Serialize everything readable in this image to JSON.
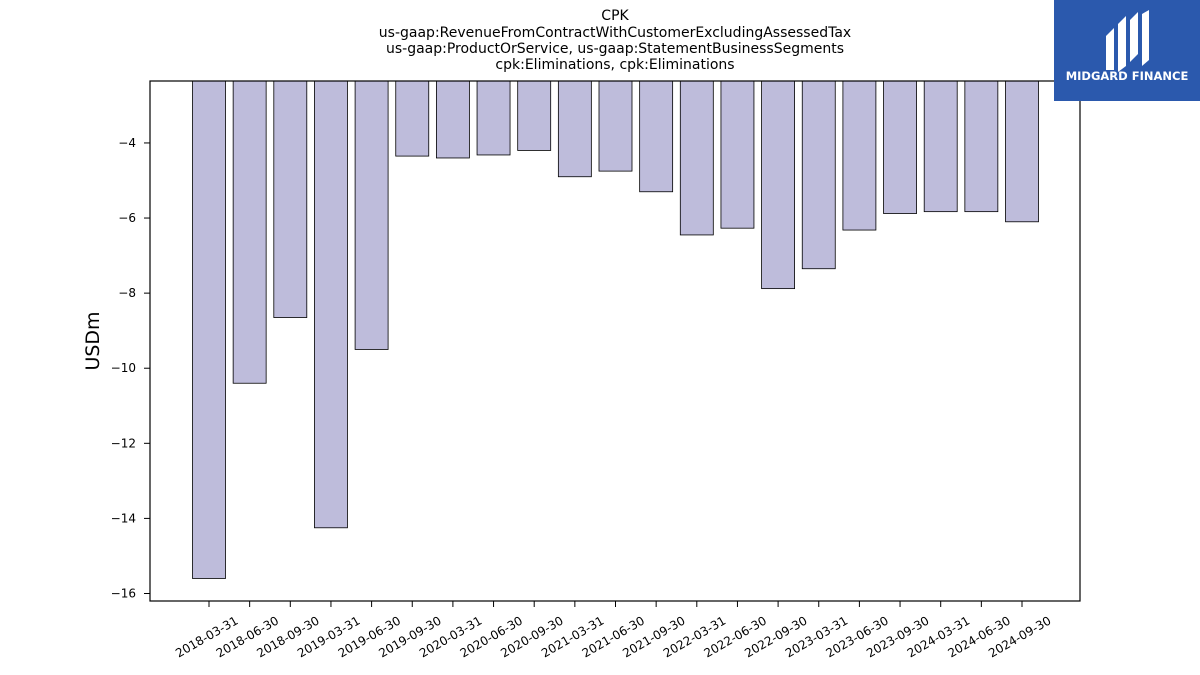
{
  "chart_data": {
    "type": "bar",
    "title": [
      "CPK",
      "us-gaap:RevenueFromContractWithCustomerExcludingAssessedTax",
      "us-gaap:ProductOrService, us-gaap:StatementBusinessSegments",
      "cpk:Eliminations, cpk:Eliminations"
    ],
    "xlabel": "",
    "ylabel": "USDm",
    "categories": [
      "2018-03-31",
      "2018-06-30",
      "2018-09-30",
      "2019-03-31",
      "2019-06-30",
      "2019-09-30",
      "2020-03-31",
      "2020-06-30",
      "2020-09-30",
      "2021-03-31",
      "2021-06-30",
      "2021-09-30",
      "2022-03-31",
      "2022-06-30",
      "2022-09-30",
      "2023-03-31",
      "2023-06-30",
      "2023-09-30",
      "2024-03-31",
      "2024-06-30",
      "2024-09-30"
    ],
    "values": [
      -15.6,
      -10.4,
      -8.65,
      -14.25,
      -9.5,
      -4.35,
      -4.4,
      -4.32,
      -4.2,
      -4.9,
      -4.75,
      -5.3,
      -6.45,
      -6.27,
      -7.88,
      -7.35,
      -6.32,
      -5.88,
      -5.83,
      -5.83,
      -6.1
    ],
    "ylim": [
      -16.2,
      -2.35
    ],
    "yticks": [
      -4,
      -6,
      -8,
      -10,
      -12,
      -14,
      -16
    ],
    "grid": false,
    "bar_color": "#bebcdb",
    "bar_edge_color": "#000000"
  },
  "logo": {
    "text": "MIDGARD FINANCE",
    "background": "#2b59ad"
  }
}
